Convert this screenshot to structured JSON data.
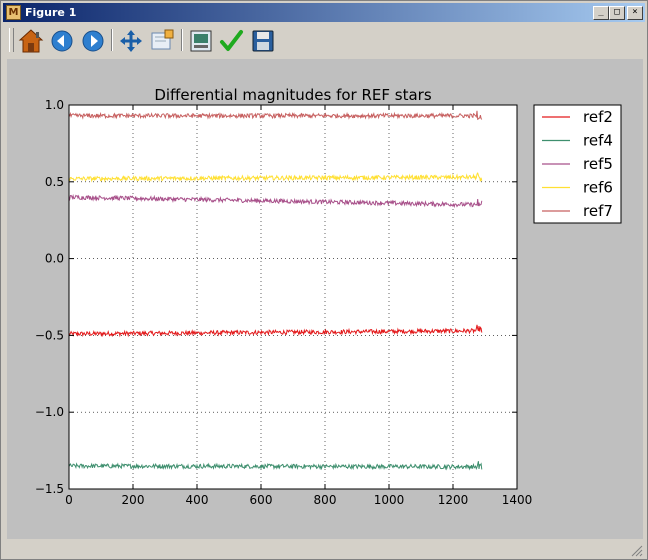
{
  "window": {
    "title": "Figure 1"
  },
  "toolbar": {
    "tools": [
      {
        "name": "home-icon"
      },
      {
        "name": "back-icon"
      },
      {
        "name": "forward-icon"
      },
      {
        "name": "pan-icon"
      },
      {
        "name": "zoom-icon"
      },
      {
        "name": "subplots-icon"
      },
      {
        "name": "check-icon"
      },
      {
        "name": "save-icon"
      }
    ]
  },
  "chart_data": {
    "type": "line",
    "title": "Differential magnitudes for REF stars",
    "xlabel": "",
    "ylabel": "",
    "xlim": [
      0,
      1400
    ],
    "ylim": [
      -1.5,
      1.0
    ],
    "grid": true,
    "legend_position": "outside-top-right",
    "xticks": [
      0,
      200,
      400,
      600,
      800,
      1000,
      1200,
      1400
    ],
    "xtick_labels": [
      "0",
      "200",
      "400",
      "600",
      "800",
      "1000",
      "1200",
      "1400"
    ],
    "yticks": [
      -1.5,
      -1.0,
      -0.5,
      0.0,
      0.5,
      1.0
    ],
    "ytick_labels": [
      "−1.5",
      "−1.0",
      "−0.5",
      "0.0",
      "0.5",
      "1.0"
    ],
    "x_range": [
      0,
      1290
    ],
    "series": [
      {
        "name": "ref2",
        "color": "#e31a1c",
        "start": -0.49,
        "end": -0.47
      },
      {
        "name": "ref4",
        "color": "#3e8f6e",
        "start": -1.35,
        "end": -1.355
      },
      {
        "name": "ref5",
        "color": "#a8508a",
        "start": 0.4,
        "end": 0.35
      },
      {
        "name": "ref6",
        "color": "#ffe033",
        "start": 0.52,
        "end": 0.53
      },
      {
        "name": "ref7",
        "color": "#c76060",
        "start": 0.93,
        "end": 0.93
      }
    ]
  }
}
